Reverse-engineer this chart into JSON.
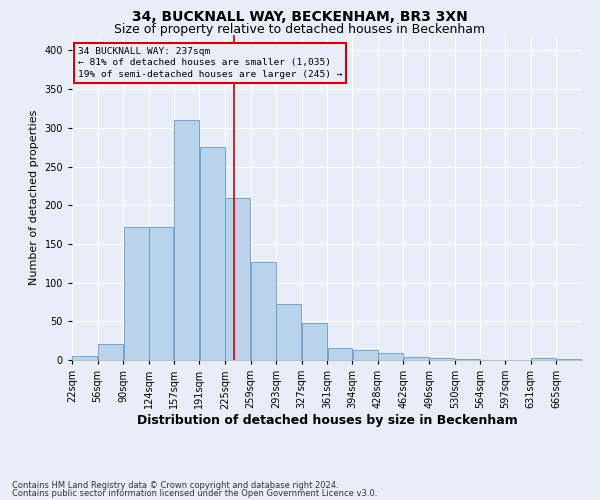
{
  "title": "34, BUCKNALL WAY, BECKENHAM, BR3 3XN",
  "subtitle": "Size of property relative to detached houses in Beckenham",
  "xlabel": "Distribution of detached houses by size in Beckenham",
  "ylabel": "Number of detached properties",
  "footnote1": "Contains HM Land Registry data © Crown copyright and database right 2024.",
  "footnote2": "Contains public sector information licensed under the Open Government Licence v3.0.",
  "annotation_text": "34 BUCKNALL WAY: 237sqm\n← 81% of detached houses are smaller (1,035)\n19% of semi-detached houses are larger (245) →",
  "bar_left_edges": [
    22,
    56,
    90,
    124,
    157,
    191,
    225,
    259,
    293,
    327,
    361,
    394,
    428,
    462,
    496,
    530,
    564,
    597,
    631,
    665
  ],
  "bar_widths": [
    34,
    34,
    34,
    33,
    34,
    34,
    34,
    34,
    34,
    34,
    33,
    34,
    34,
    34,
    34,
    34,
    33,
    34,
    34,
    34
  ],
  "bar_heights": [
    5,
    21,
    172,
    172,
    310,
    275,
    210,
    127,
    73,
    48,
    15,
    13,
    9,
    4,
    3,
    1,
    0,
    0,
    3,
    1
  ],
  "bar_color": "#bad3ea",
  "bar_edge_color": "#6699cc",
  "vline_color": "#cc0000",
  "vline_x": 237,
  "ylim_max": 420,
  "yticks": [
    0,
    50,
    100,
    150,
    200,
    250,
    300,
    350,
    400
  ],
  "bg_color": "#e8eef8",
  "grid_color": "#ffffff",
  "title_fontsize": 10,
  "subtitle_fontsize": 9,
  "axis_label_fontsize": 8,
  "tick_fontsize": 7,
  "footnote_fontsize": 6
}
